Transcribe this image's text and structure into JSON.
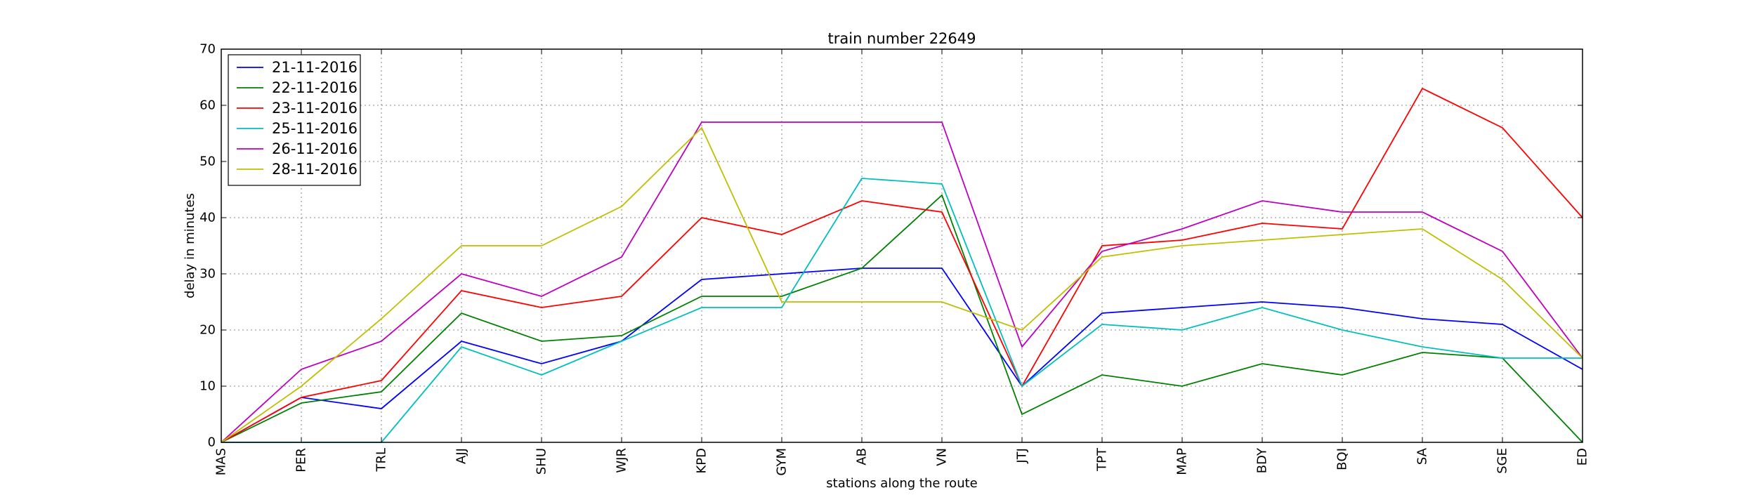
{
  "chart_data": {
    "type": "line",
    "title": "train number 22649",
    "xlabel": "stations along the route",
    "ylabel": "delay in minutes",
    "categories": [
      "MAS",
      "PER",
      "TRL",
      "AJJ",
      "SHU",
      "WJR",
      "KPD",
      "GYM",
      "AB",
      "VN",
      "JTJ",
      "TPT",
      "MAP",
      "BDY",
      "BQI",
      "SA",
      "SGE",
      "ED"
    ],
    "ylim": [
      0,
      70
    ],
    "yticks": [
      0,
      10,
      20,
      30,
      40,
      50,
      60,
      70
    ],
    "grid": true,
    "legend_position": "upper-left",
    "series": [
      {
        "name": "21-11-2016",
        "color": "#0000ff",
        "values": [
          0,
          8,
          6,
          18,
          14,
          18,
          29,
          30,
          31,
          31,
          10,
          23,
          24,
          25,
          24,
          22,
          21,
          13
        ]
      },
      {
        "name": "22-11-2016",
        "color": "#008000",
        "values": [
          0,
          7,
          9,
          23,
          18,
          19,
          26,
          26,
          31,
          44,
          5,
          12,
          10,
          14,
          12,
          16,
          15,
          0
        ]
      },
      {
        "name": "23-11-2016",
        "color": "#ff0000",
        "values": [
          0,
          8,
          11,
          27,
          24,
          26,
          40,
          37,
          43,
          41,
          10,
          35,
          36,
          39,
          38,
          63,
          56,
          40
        ]
      },
      {
        "name": "25-11-2016",
        "color": "#00bfbf",
        "values": [
          0,
          0,
          0,
          17,
          12,
          18,
          24,
          24,
          47,
          46,
          10,
          21,
          20,
          24,
          20,
          17,
          15,
          15
        ]
      },
      {
        "name": "26-11-2016",
        "color": "#bf00bf",
        "values": [
          0,
          13,
          18,
          30,
          26,
          33,
          57,
          57,
          57,
          57,
          17,
          34,
          38,
          43,
          41,
          41,
          34,
          15
        ]
      },
      {
        "name": "28-11-2016",
        "color": "#bfbf00",
        "values": [
          0,
          10,
          22,
          35,
          35,
          42,
          56,
          25,
          25,
          25,
          20,
          33,
          35,
          36,
          37,
          38,
          29,
          15
        ]
      }
    ]
  }
}
